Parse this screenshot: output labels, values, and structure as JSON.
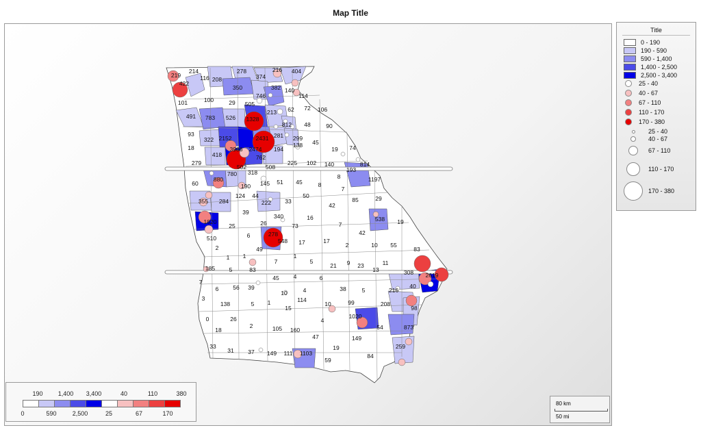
{
  "map_title": "Map Title",
  "legend": {
    "title": "Title",
    "fill_classes": [
      {
        "label": "0 - 190",
        "color": "#ffffff"
      },
      {
        "label": "190 - 590",
        "color": "#c8c8f6"
      },
      {
        "label": "590 - 1,400",
        "color": "#8c8cf0"
      },
      {
        "label": "1,400 - 2,500",
        "color": "#4b4be8"
      },
      {
        "label": "2,500 - 3,400",
        "color": "#0000e6"
      }
    ],
    "red_circle_classes": [
      {
        "label": "25 - 40",
        "color": "#ffffff"
      },
      {
        "label": "40 - 67",
        "color": "#f7c0c0"
      },
      {
        "label": "67 - 110",
        "color": "#f28080"
      },
      {
        "label": "110 - 170",
        "color": "#ec4040"
      },
      {
        "label": "170 - 380",
        "color": "#e60000"
      }
    ],
    "size_circle_classes": [
      {
        "label": "25 - 40"
      },
      {
        "label": "40 - 67"
      },
      {
        "label": "67 - 110"
      },
      {
        "label": "110 - 170"
      },
      {
        "label": "170 - 380"
      }
    ]
  },
  "bottom_legend": {
    "top_labels": [
      "190",
      "1,400",
      "3,400",
      "40",
      "110",
      "380"
    ],
    "bottom_labels": [
      "0",
      "590",
      "2,500",
      "25",
      "67",
      "170"
    ]
  },
  "scale": {
    "km": "80 km",
    "mi": "50 mi"
  },
  "colors": {
    "c0": "#ffffff",
    "c1": "#c8c8f6",
    "c2": "#8c8cf0",
    "c3": "#4b4be8",
    "c4": "#0000e6",
    "r1": "#f7c0c0",
    "r2": "#f28080",
    "r3": "#ec4040",
    "r4": "#e60000"
  },
  "county_labels": [
    "219",
    "214",
    "116",
    "208",
    "278",
    "374",
    "216",
    "404",
    "422",
    "350",
    "382",
    "140",
    "101",
    "100",
    "29",
    "746",
    "505",
    "114",
    "62",
    "72",
    "106",
    "491",
    "783",
    "526",
    "1328",
    "213",
    "812",
    "48",
    "90",
    "93",
    "2152",
    "2431",
    "281",
    "299",
    "45",
    "19",
    "74",
    "322",
    "18",
    "3986",
    "2474",
    "194",
    "138",
    "418",
    "762",
    "279",
    "502",
    "508",
    "225",
    "102",
    "140",
    "193",
    "814",
    "60",
    "880",
    "780",
    "318",
    "1197",
    "190",
    "145",
    "51",
    "45",
    "8",
    "8",
    "7",
    "124",
    "44",
    "50",
    "42",
    "85",
    "29",
    "355",
    "284",
    "222",
    "33",
    "39",
    "340",
    "16",
    "538",
    "19",
    "1820",
    "25",
    "26",
    "73",
    "7",
    "510",
    "6",
    "278",
    "42",
    "17",
    "17",
    "2",
    "10",
    "55",
    "83",
    "548",
    "49",
    "1",
    "1",
    "2",
    "7",
    "1",
    "5",
    "21",
    "9",
    "23",
    "11",
    "185",
    "5",
    "83",
    "13",
    "308",
    "2619",
    "7",
    "45",
    "4",
    "6",
    "6",
    "56",
    "39",
    "10",
    "4",
    "38",
    "5",
    "216",
    "40",
    "3",
    "138",
    "5",
    "1",
    "114",
    "10",
    "99",
    "208",
    "98",
    "0",
    "26",
    "1020",
    "15",
    "4",
    "54",
    "873",
    "18",
    "2",
    "105",
    "160",
    "47",
    "149",
    "33",
    "31",
    "37",
    "149",
    "111",
    "1103",
    "19",
    "84",
    "259",
    "59"
  ]
}
